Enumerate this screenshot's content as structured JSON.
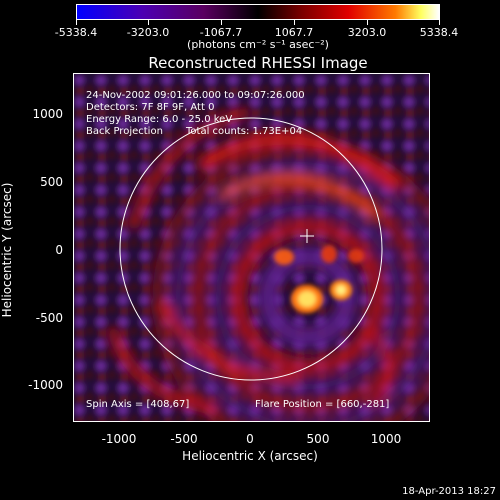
{
  "colorbar": {
    "ticks": [
      "-5338.4",
      "-3203.0",
      "-1067.7",
      "1067.7",
      "3203.0",
      "5338.4"
    ],
    "unit_label": "(photons cm⁻² s⁻¹ asec⁻²)"
  },
  "title": "Reconstructed RHESSI Image",
  "info": {
    "time_range": "24-Nov-2002 09:01:26.000 to 09:07:26.000",
    "detectors": "Detectors: 7F 8F 9F, Att 0",
    "energy": "Energy Range: 6.0 - 25.0 keV",
    "method": "Back Projection",
    "counts": "Total counts: 1.73E+04",
    "spin_axis": "Spin Axis = [408,67]",
    "flare_position": "Flare Position = [660,-281]"
  },
  "axes": {
    "xlabel": "Heliocentric X (arcsec)",
    "ylabel": "Heliocentric Y (arcsec)",
    "x_ticks": [
      "-1000",
      "-500",
      "0",
      "500",
      "1000"
    ],
    "y_ticks": [
      "1000",
      "500",
      "0",
      "-500",
      "-1000"
    ],
    "xlim": [
      -1300,
      1300
    ],
    "ylim": [
      -1300,
      1300
    ]
  },
  "datestamp": "18-Apr-2013 18:27",
  "colors": {
    "background": "#000000",
    "annotation": "#ffffff"
  }
}
